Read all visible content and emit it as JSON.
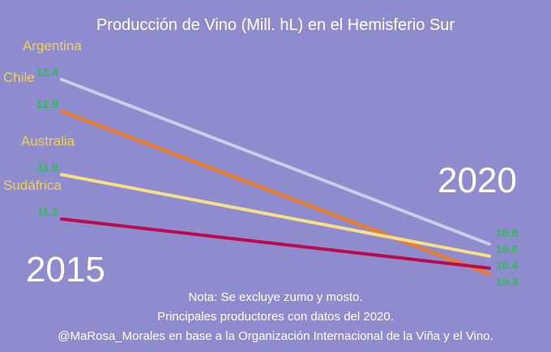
{
  "chart_data": {
    "type": "line",
    "title": "Producción de Vino (Mill. hL) en el Hemisferio Sur",
    "x": [
      "2015",
      "2020"
    ],
    "ylabel": "",
    "xlabel": "",
    "ylim": [
      10.0,
      13.7
    ],
    "series": [
      {
        "name": "Argentina",
        "values": [
          13.4,
          10.8
        ],
        "color": "#c9cde8",
        "label_color": "#f3d24b"
      },
      {
        "name": "Chile",
        "values": [
          12.9,
          10.3
        ],
        "color": "#f07d1e",
        "label_color": "#f3d24b"
      },
      {
        "name": "Australia",
        "values": [
          11.9,
          10.6
        ],
        "color": "#f5e088",
        "label_color": "#f3d24b"
      },
      {
        "name": "Sudáfrica",
        "values": [
          11.2,
          10.4
        ],
        "color": "#bb0a4e",
        "label_color": "#f3d24b"
      }
    ],
    "value_label_color": "#27c24a",
    "grid": false,
    "legend": "none"
  },
  "notes": {
    "line1": "Nota: Se excluye zumo y mosto.",
    "line2": "Principales productores con datos del 2020.",
    "line3": "@MaRosa_Morales en base a la Organización Internacional de la Viña y el Vino."
  }
}
